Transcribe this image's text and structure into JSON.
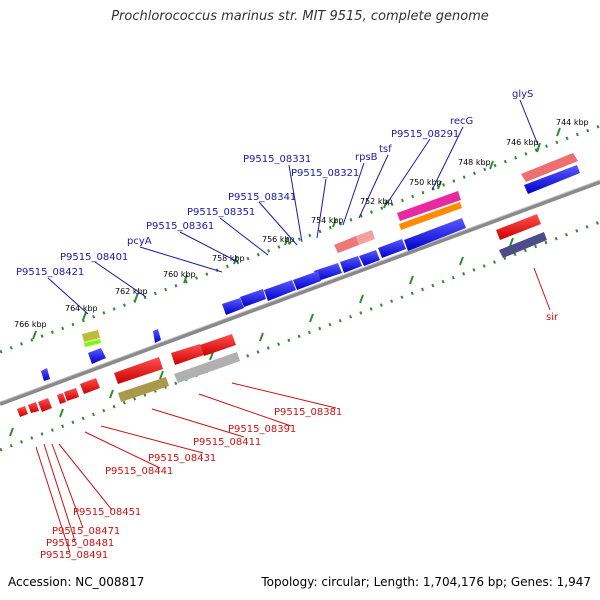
{
  "title": "Prochlorococcus marinus str. MIT 9515, complete genome",
  "footer": {
    "accession": "Accession: NC_008817",
    "summary": "Topology: circular; Length: 1,704,176 bp; Genes: 1,947"
  },
  "colors": {
    "forward_gene": "#0a0ae6",
    "reverse_gene": "#ee0000",
    "forward_label": "#1a1aa8",
    "reverse_label": "#cc1111",
    "track_dots": "#2e8b2e",
    "backbone": "#8a8a8a"
  },
  "ruler_labels": [
    "744 kbp",
    "746 kbp",
    "748 kbp",
    "750 kbp",
    "752 kbp",
    "754 kbp",
    "756 kbp",
    "758 kbp",
    "760 kbp",
    "762 kbp",
    "764 kbp",
    "766 kbp"
  ],
  "forward_labels": [
    "glyS",
    "recG",
    "P9515_08291",
    "tsf",
    "rpsB",
    "P9515_08321",
    "P9515_08331",
    "P9515_08341",
    "P9515_08351",
    "P9515_08361",
    "pcyA",
    "P9515_08401",
    "P9515_08421"
  ],
  "reverse_labels": [
    "sir",
    "P9515_08381",
    "P9515_08391",
    "P9515_08411",
    "P9515_08431",
    "P9515_08441",
    "P9515_08451",
    "P9515_08471",
    "P9515_08481",
    "P9515_08491"
  ]
}
